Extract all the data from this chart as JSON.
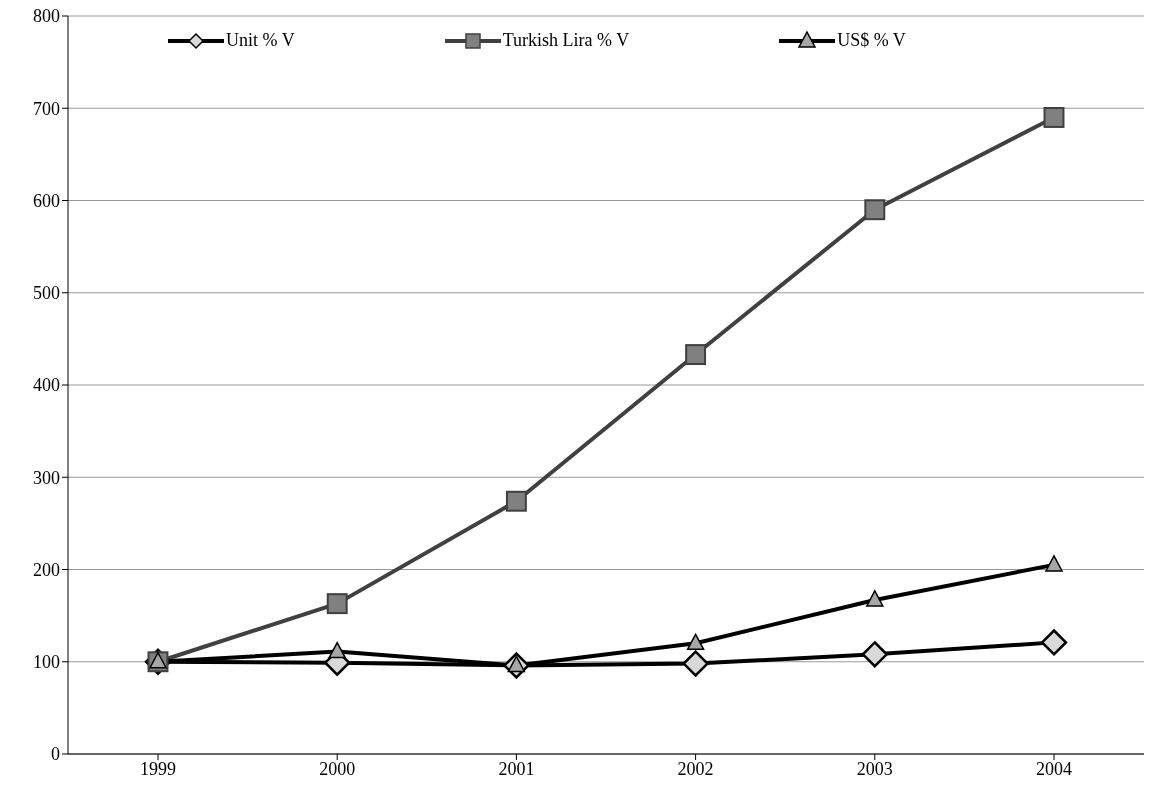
{
  "chart_data": {
    "type": "line",
    "categories": [
      "1999",
      "2000",
      "2001",
      "2002",
      "2003",
      "2004"
    ],
    "series": [
      {
        "name": "Unit % V",
        "color": "#000000",
        "marker": "diamond",
        "values": [
          100,
          99,
          96,
          98,
          108,
          121
        ]
      },
      {
        "name": "Turkish Lira % V",
        "color": "#404040",
        "marker": "square",
        "values": [
          100,
          163,
          274,
          433,
          590,
          690
        ]
      },
      {
        "name": "US$ % V",
        "color": "#000000",
        "marker": "triangle",
        "values": [
          100,
          111,
          96,
          120,
          167,
          205
        ]
      }
    ],
    "ylim": [
      0,
      800
    ],
    "yticks": [
      0,
      100,
      200,
      300,
      400,
      500,
      600,
      700,
      800
    ],
    "grid": "y",
    "legend": "top"
  }
}
